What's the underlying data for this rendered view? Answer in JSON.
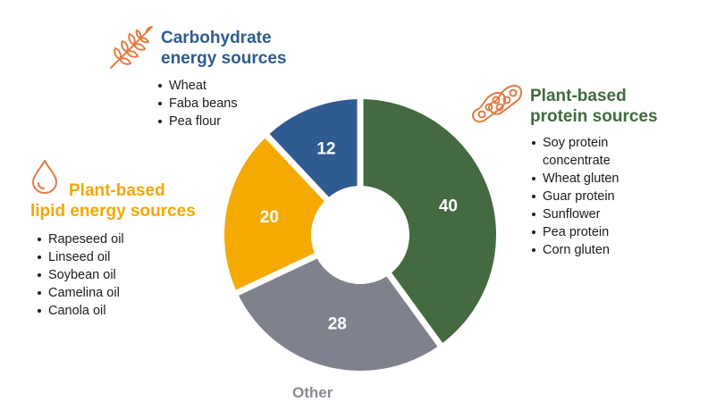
{
  "chart_data": {
    "type": "pie",
    "style": "donut",
    "slices": [
      {
        "label": "Plant-based protein sources",
        "value": 40,
        "color": "#456a42"
      },
      {
        "label": "Other",
        "value": 28,
        "color": "#7f828d"
      },
      {
        "label": "Plant-based lipid energy sources",
        "value": 20,
        "color": "#f4aa00"
      },
      {
        "label": "Carbohydrate energy sources",
        "value": 12,
        "color": "#2f5b90"
      }
    ]
  },
  "groups": {
    "carbohydrate": {
      "title_line1": "Carbohydrate",
      "title_line2": "energy sources",
      "icon": "wheat-icon",
      "color": "#2f5b90",
      "items": [
        "Wheat",
        "Faba beans",
        "Pea flour"
      ]
    },
    "protein": {
      "title_line1": "Plant-based",
      "title_line2": "protein sources",
      "icon": "beans-icon",
      "color": "#3f6a3f",
      "items": [
        "Soy protein concentrate",
        "Wheat gluten",
        "Guar protein",
        "Sunflower",
        "Pea protein",
        "Corn gluten"
      ]
    },
    "lipid": {
      "title_line1": "Plant-based",
      "title_line2": "lipid energy sources",
      "icon": "oil-drop-icon",
      "color": "#f4a700",
      "items": [
        "Rapeseed oil",
        "Linseed oil",
        "Soybean oil",
        "Camelina oil",
        "Canola oil"
      ]
    },
    "other": {
      "title": "Other",
      "color": "#878a95"
    }
  }
}
